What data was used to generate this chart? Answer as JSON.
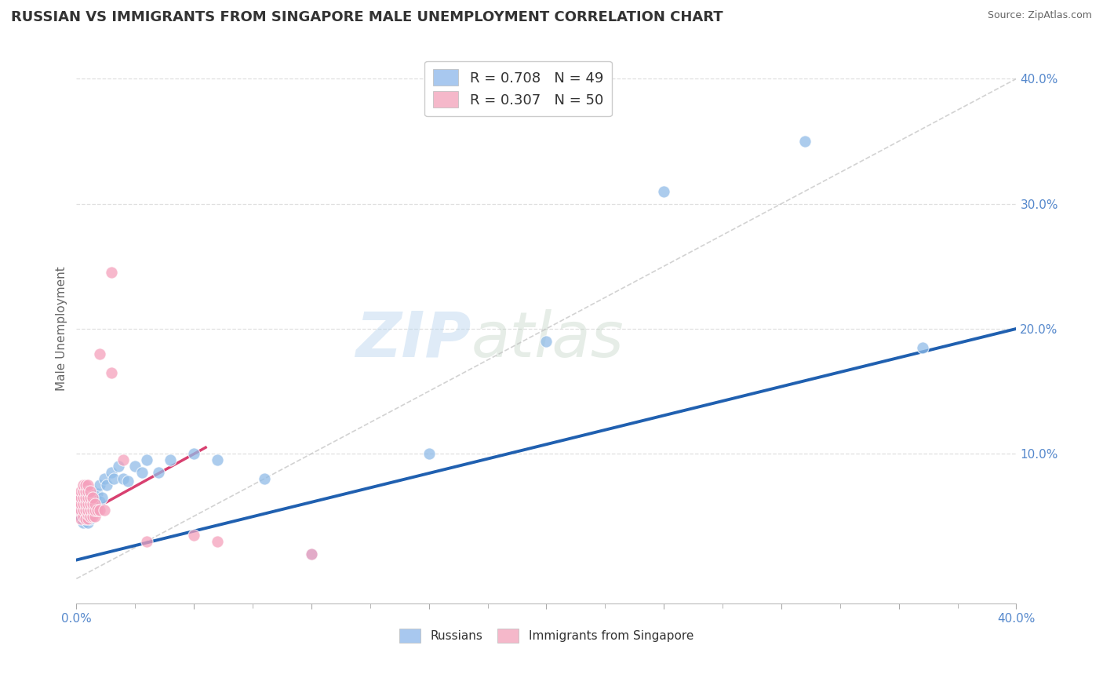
{
  "title": "RUSSIAN VS IMMIGRANTS FROM SINGAPORE MALE UNEMPLOYMENT CORRELATION CHART",
  "source": "Source: ZipAtlas.com",
  "ylabel": "Male Unemployment",
  "watermark_zip": "ZIP",
  "watermark_atlas": "atlas",
  "xlim": [
    0.0,
    0.4
  ],
  "ylim": [
    -0.02,
    0.42
  ],
  "xtick_positions": [
    0.0,
    0.05,
    0.1,
    0.15,
    0.2,
    0.25,
    0.3,
    0.35,
    0.4
  ],
  "xtick_labels": [
    "0.0%",
    "",
    "",
    "",
    "",
    "",
    "",
    "",
    "40.0%"
  ],
  "ytick_positions": [
    0.1,
    0.2,
    0.3,
    0.4
  ],
  "ytick_labels": [
    "10.0%",
    "20.0%",
    "30.0%",
    "40.0%"
  ],
  "legend_top": [
    {
      "label": "R = 0.708   N = 49",
      "color": "#a8c8ef"
    },
    {
      "label": "R = 0.307   N = 50",
      "color": "#f5b8ca"
    }
  ],
  "legend_bottom_labels": [
    "Russians",
    "Immigrants from Singapore"
  ],
  "legend_bottom_colors": [
    "#a8c8ef",
    "#f5b8ca"
  ],
  "russians_x": [
    0.001,
    0.002,
    0.002,
    0.003,
    0.003,
    0.003,
    0.003,
    0.004,
    0.004,
    0.004,
    0.004,
    0.005,
    0.005,
    0.005,
    0.005,
    0.006,
    0.006,
    0.006,
    0.006,
    0.007,
    0.007,
    0.007,
    0.008,
    0.008,
    0.009,
    0.01,
    0.01,
    0.011,
    0.012,
    0.013,
    0.015,
    0.016,
    0.018,
    0.02,
    0.022,
    0.025,
    0.028,
    0.03,
    0.035,
    0.04,
    0.05,
    0.06,
    0.08,
    0.1,
    0.15,
    0.2,
    0.25,
    0.31,
    0.36
  ],
  "russians_y": [
    0.055,
    0.065,
    0.05,
    0.058,
    0.065,
    0.055,
    0.045,
    0.06,
    0.055,
    0.068,
    0.05,
    0.062,
    0.055,
    0.045,
    0.058,
    0.06,
    0.052,
    0.065,
    0.048,
    0.06,
    0.055,
    0.07,
    0.065,
    0.055,
    0.068,
    0.062,
    0.075,
    0.065,
    0.08,
    0.075,
    0.085,
    0.08,
    0.09,
    0.08,
    0.078,
    0.09,
    0.085,
    0.095,
    0.085,
    0.095,
    0.1,
    0.095,
    0.08,
    0.02,
    0.1,
    0.19,
    0.31,
    0.35,
    0.185
  ],
  "singapore_x": [
    0.001,
    0.001,
    0.001,
    0.002,
    0.002,
    0.002,
    0.002,
    0.002,
    0.003,
    0.003,
    0.003,
    0.003,
    0.003,
    0.003,
    0.004,
    0.004,
    0.004,
    0.004,
    0.004,
    0.004,
    0.005,
    0.005,
    0.005,
    0.005,
    0.005,
    0.005,
    0.005,
    0.006,
    0.006,
    0.006,
    0.006,
    0.006,
    0.007,
    0.007,
    0.007,
    0.007,
    0.008,
    0.008,
    0.008,
    0.009,
    0.01,
    0.01,
    0.012,
    0.015,
    0.02,
    0.03,
    0.05,
    0.06,
    0.1,
    0.015
  ],
  "singapore_y": [
    0.055,
    0.06,
    0.065,
    0.048,
    0.055,
    0.06,
    0.065,
    0.07,
    0.05,
    0.055,
    0.06,
    0.065,
    0.07,
    0.075,
    0.048,
    0.055,
    0.06,
    0.065,
    0.07,
    0.075,
    0.048,
    0.052,
    0.055,
    0.06,
    0.065,
    0.07,
    0.075,
    0.05,
    0.055,
    0.06,
    0.065,
    0.07,
    0.05,
    0.055,
    0.06,
    0.065,
    0.05,
    0.055,
    0.06,
    0.055,
    0.18,
    0.055,
    0.055,
    0.165,
    0.095,
    0.03,
    0.035,
    0.03,
    0.02,
    0.245
  ],
  "blue_line_x": [
    0.0,
    0.4
  ],
  "blue_line_y": [
    0.015,
    0.2
  ],
  "pink_line_x": [
    0.0,
    0.055
  ],
  "pink_line_y": [
    0.048,
    0.105
  ],
  "diag_line_x": [
    0.0,
    0.4
  ],
  "diag_line_y": [
    0.0,
    0.4
  ],
  "title_color": "#333333",
  "title_fontsize": 13,
  "blue_scatter_color": "#90bce8",
  "pink_scatter_color": "#f5a0bc",
  "blue_line_color": "#2060b0",
  "pink_line_color": "#d84070",
  "diag_line_color": "#c0c0c0",
  "background_color": "#ffffff",
  "grid_color": "#d8d8d8",
  "source_color": "#666666",
  "axis_label_color": "#666666",
  "tick_color": "#5588cc"
}
